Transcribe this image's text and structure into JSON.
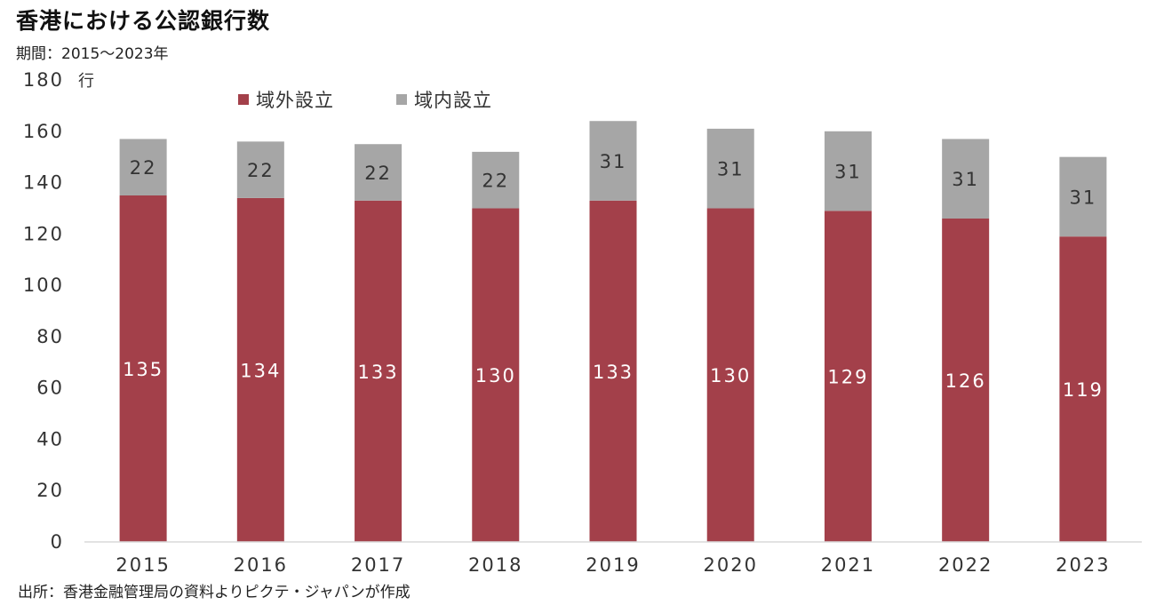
{
  "title": "香港における公認銀行数",
  "subtitle": "期間：2015～2023年",
  "source": "出所：香港金融管理局の資料よりピクテ・ジャパンが作成",
  "colors": {
    "offshore": "#a3404a",
    "domestic": "#a6a6a6",
    "label_on_offshore": "#ffffff",
    "label_on_domestic": "#333333",
    "axis": "#d9d9d9"
  },
  "chart_data": {
    "type": "bar",
    "stacked": true,
    "categories": [
      "2015",
      "2016",
      "2017",
      "2018",
      "2019",
      "2020",
      "2021",
      "2022",
      "2023"
    ],
    "series": [
      {
        "name": "域外設立",
        "values": [
          135,
          134,
          133,
          130,
          133,
          130,
          129,
          126,
          119
        ]
      },
      {
        "name": "域内設立",
        "values": [
          22,
          22,
          22,
          22,
          31,
          31,
          31,
          31,
          31
        ]
      }
    ],
    "y_unit": "行",
    "ylim": [
      0,
      180
    ],
    "y_ticks": [
      0,
      20,
      40,
      60,
      80,
      100,
      120,
      140,
      160,
      180
    ],
    "grid": false,
    "legend_position": "top-left"
  }
}
